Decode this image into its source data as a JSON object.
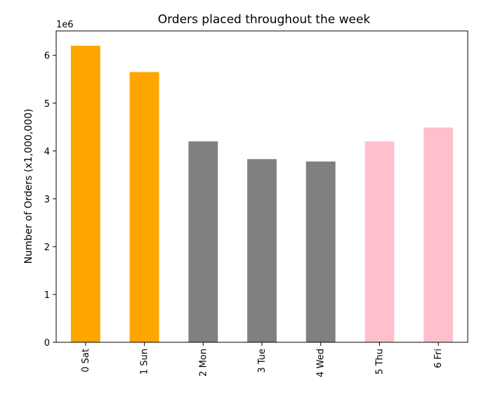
{
  "chart_data": {
    "type": "bar",
    "title": "Orders placed throughout the week",
    "xlabel": "",
    "ylabel": "Number of Orders (x1,000,000)",
    "y_offset_label": "1e6",
    "categories": [
      "0 Sat",
      "1 Sun",
      "2 Mon",
      "3 Tue",
      "4 Wed",
      "5 Thu",
      "6 Fri"
    ],
    "values": [
      6200000,
      5650000,
      4200000,
      3830000,
      3780000,
      4200000,
      4490000
    ],
    "colors": [
      "#ffa500",
      "#ffa500",
      "#808080",
      "#808080",
      "#808080",
      "#ffc0cb",
      "#ffc0cb"
    ],
    "ylim": [
      0,
      6510000
    ],
    "yticks": [
      0,
      1,
      2,
      3,
      4,
      5,
      6
    ],
    "ytick_scale": 1000000,
    "grid": false,
    "legend": false
  }
}
